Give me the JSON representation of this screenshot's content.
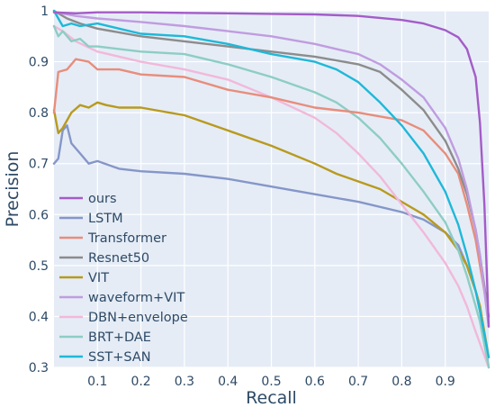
{
  "chart_data": {
    "type": "line",
    "xlabel": "Recall",
    "ylabel": "Precision",
    "xlim": [
      0,
      1
    ],
    "ylim": [
      0.3,
      1
    ],
    "x_ticks": [
      0.1,
      0.2,
      0.3,
      0.4,
      0.5,
      0.6,
      0.7,
      0.8,
      0.9
    ],
    "x_tick_labels": [
      "0.1",
      "0.2",
      "0.3",
      "0.4",
      "0.5",
      "0.6",
      "0.7",
      "0.8",
      "0.9"
    ],
    "y_ticks": [
      0.3,
      0.4,
      0.5,
      0.6,
      0.7,
      0.8,
      0.9,
      1
    ],
    "y_tick_labels": [
      "0.3",
      "0.4",
      "0.5",
      "0.6",
      "0.7",
      "0.8",
      "0.9",
      "1"
    ],
    "grid": true,
    "legend_position": "lower-left",
    "series": [
      {
        "name": "ours",
        "color": "#a45cc8",
        "points": [
          [
            0,
            0.997
          ],
          [
            0.05,
            0.995
          ],
          [
            0.1,
            0.997
          ],
          [
            0.2,
            0.997
          ],
          [
            0.3,
            0.996
          ],
          [
            0.4,
            0.995
          ],
          [
            0.5,
            0.994
          ],
          [
            0.6,
            0.993
          ],
          [
            0.7,
            0.99
          ],
          [
            0.8,
            0.982
          ],
          [
            0.85,
            0.975
          ],
          [
            0.9,
            0.962
          ],
          [
            0.93,
            0.948
          ],
          [
            0.95,
            0.925
          ],
          [
            0.97,
            0.87
          ],
          [
            0.98,
            0.78
          ],
          [
            0.99,
            0.62
          ],
          [
            1.0,
            0.38
          ]
        ]
      },
      {
        "name": "LSTM",
        "color": "#8596c8",
        "points": [
          [
            0,
            0.7
          ],
          [
            0.01,
            0.71
          ],
          [
            0.02,
            0.765
          ],
          [
            0.03,
            0.775
          ],
          [
            0.04,
            0.74
          ],
          [
            0.06,
            0.72
          ],
          [
            0.08,
            0.7
          ],
          [
            0.1,
            0.705
          ],
          [
            0.15,
            0.69
          ],
          [
            0.2,
            0.685
          ],
          [
            0.3,
            0.68
          ],
          [
            0.4,
            0.67
          ],
          [
            0.5,
            0.655
          ],
          [
            0.6,
            0.64
          ],
          [
            0.7,
            0.625
          ],
          [
            0.8,
            0.605
          ],
          [
            0.85,
            0.59
          ],
          [
            0.9,
            0.565
          ],
          [
            0.93,
            0.54
          ],
          [
            0.95,
            0.5
          ],
          [
            0.97,
            0.45
          ],
          [
            0.98,
            0.42
          ],
          [
            1.0,
            0.3
          ]
        ]
      },
      {
        "name": "Transformer",
        "color": "#e88d7c",
        "points": [
          [
            0,
            0.8
          ],
          [
            0.01,
            0.88
          ],
          [
            0.03,
            0.885
          ],
          [
            0.05,
            0.905
          ],
          [
            0.08,
            0.9
          ],
          [
            0.1,
            0.885
          ],
          [
            0.15,
            0.885
          ],
          [
            0.2,
            0.875
          ],
          [
            0.3,
            0.87
          ],
          [
            0.4,
            0.845
          ],
          [
            0.5,
            0.83
          ],
          [
            0.6,
            0.81
          ],
          [
            0.7,
            0.8
          ],
          [
            0.8,
            0.785
          ],
          [
            0.85,
            0.765
          ],
          [
            0.9,
            0.72
          ],
          [
            0.93,
            0.68
          ],
          [
            0.95,
            0.62
          ],
          [
            0.97,
            0.55
          ],
          [
            0.98,
            0.5
          ],
          [
            1.0,
            0.4
          ]
        ]
      },
      {
        "name": "Resnet50",
        "color": "#8c8c8c",
        "points": [
          [
            0,
            1.0
          ],
          [
            0.03,
            0.985
          ],
          [
            0.06,
            0.975
          ],
          [
            0.1,
            0.965
          ],
          [
            0.2,
            0.95
          ],
          [
            0.3,
            0.94
          ],
          [
            0.4,
            0.93
          ],
          [
            0.5,
            0.92
          ],
          [
            0.6,
            0.91
          ],
          [
            0.7,
            0.895
          ],
          [
            0.75,
            0.88
          ],
          [
            0.8,
            0.845
          ],
          [
            0.85,
            0.805
          ],
          [
            0.9,
            0.745
          ],
          [
            0.93,
            0.69
          ],
          [
            0.95,
            0.64
          ],
          [
            0.97,
            0.57
          ],
          [
            0.98,
            0.52
          ],
          [
            1.0,
            0.4
          ]
        ]
      },
      {
        "name": "VIT",
        "color": "#b89a1e",
        "points": [
          [
            0,
            0.805
          ],
          [
            0.01,
            0.76
          ],
          [
            0.02,
            0.77
          ],
          [
            0.04,
            0.8
          ],
          [
            0.06,
            0.815
          ],
          [
            0.08,
            0.81
          ],
          [
            0.1,
            0.82
          ],
          [
            0.12,
            0.815
          ],
          [
            0.15,
            0.81
          ],
          [
            0.2,
            0.81
          ],
          [
            0.3,
            0.795
          ],
          [
            0.4,
            0.765
          ],
          [
            0.5,
            0.735
          ],
          [
            0.6,
            0.7
          ],
          [
            0.65,
            0.68
          ],
          [
            0.7,
            0.665
          ],
          [
            0.75,
            0.65
          ],
          [
            0.8,
            0.625
          ],
          [
            0.85,
            0.6
          ],
          [
            0.9,
            0.565
          ],
          [
            0.93,
            0.53
          ],
          [
            0.95,
            0.5
          ],
          [
            0.97,
            0.45
          ],
          [
            0.98,
            0.42
          ],
          [
            1.0,
            0.32
          ]
        ]
      },
      {
        "name": "waveform+VIT",
        "color": "#c09ce0",
        "points": [
          [
            0,
            0.998
          ],
          [
            0.05,
            0.99
          ],
          [
            0.1,
            0.985
          ],
          [
            0.2,
            0.978
          ],
          [
            0.3,
            0.97
          ],
          [
            0.4,
            0.96
          ],
          [
            0.5,
            0.95
          ],
          [
            0.6,
            0.935
          ],
          [
            0.7,
            0.915
          ],
          [
            0.75,
            0.895
          ],
          [
            0.8,
            0.865
          ],
          [
            0.85,
            0.83
          ],
          [
            0.9,
            0.77
          ],
          [
            0.93,
            0.71
          ],
          [
            0.95,
            0.65
          ],
          [
            0.97,
            0.57
          ],
          [
            0.98,
            0.52
          ],
          [
            1.0,
            0.38
          ]
        ]
      },
      {
        "name": "DBN+envelope",
        "color": "#f2b8da",
        "points": [
          [
            0,
            0.97
          ],
          [
            0.02,
            0.96
          ],
          [
            0.05,
            0.94
          ],
          [
            0.1,
            0.92
          ],
          [
            0.15,
            0.91
          ],
          [
            0.2,
            0.9
          ],
          [
            0.3,
            0.885
          ],
          [
            0.4,
            0.865
          ],
          [
            0.5,
            0.83
          ],
          [
            0.6,
            0.79
          ],
          [
            0.65,
            0.76
          ],
          [
            0.7,
            0.72
          ],
          [
            0.75,
            0.675
          ],
          [
            0.8,
            0.62
          ],
          [
            0.85,
            0.565
          ],
          [
            0.9,
            0.505
          ],
          [
            0.93,
            0.46
          ],
          [
            0.95,
            0.42
          ],
          [
            0.97,
            0.37
          ],
          [
            1.0,
            0.3
          ]
        ]
      },
      {
        "name": "BRT+DAE",
        "color": "#8dcdc4",
        "points": [
          [
            0,
            0.97
          ],
          [
            0.01,
            0.95
          ],
          [
            0.02,
            0.96
          ],
          [
            0.04,
            0.94
          ],
          [
            0.06,
            0.945
          ],
          [
            0.08,
            0.93
          ],
          [
            0.1,
            0.93
          ],
          [
            0.2,
            0.92
          ],
          [
            0.3,
            0.915
          ],
          [
            0.4,
            0.895
          ],
          [
            0.5,
            0.87
          ],
          [
            0.6,
            0.84
          ],
          [
            0.65,
            0.82
          ],
          [
            0.7,
            0.79
          ],
          [
            0.75,
            0.75
          ],
          [
            0.8,
            0.7
          ],
          [
            0.85,
            0.645
          ],
          [
            0.9,
            0.585
          ],
          [
            0.93,
            0.53
          ],
          [
            0.95,
            0.48
          ],
          [
            0.97,
            0.42
          ],
          [
            0.98,
            0.39
          ],
          [
            1.0,
            0.3
          ]
        ]
      },
      {
        "name": "SST+SAN",
        "color": "#1fb8d8",
        "points": [
          [
            0,
            1.0
          ],
          [
            0.01,
            0.985
          ],
          [
            0.02,
            0.97
          ],
          [
            0.04,
            0.975
          ],
          [
            0.06,
            0.97
          ],
          [
            0.1,
            0.975
          ],
          [
            0.15,
            0.965
          ],
          [
            0.2,
            0.955
          ],
          [
            0.3,
            0.95
          ],
          [
            0.4,
            0.935
          ],
          [
            0.5,
            0.915
          ],
          [
            0.6,
            0.9
          ],
          [
            0.65,
            0.885
          ],
          [
            0.7,
            0.86
          ],
          [
            0.75,
            0.82
          ],
          [
            0.8,
            0.775
          ],
          [
            0.85,
            0.72
          ],
          [
            0.9,
            0.645
          ],
          [
            0.93,
            0.58
          ],
          [
            0.95,
            0.52
          ],
          [
            0.97,
            0.45
          ],
          [
            0.98,
            0.41
          ],
          [
            1.0,
            0.32
          ]
        ]
      }
    ]
  }
}
